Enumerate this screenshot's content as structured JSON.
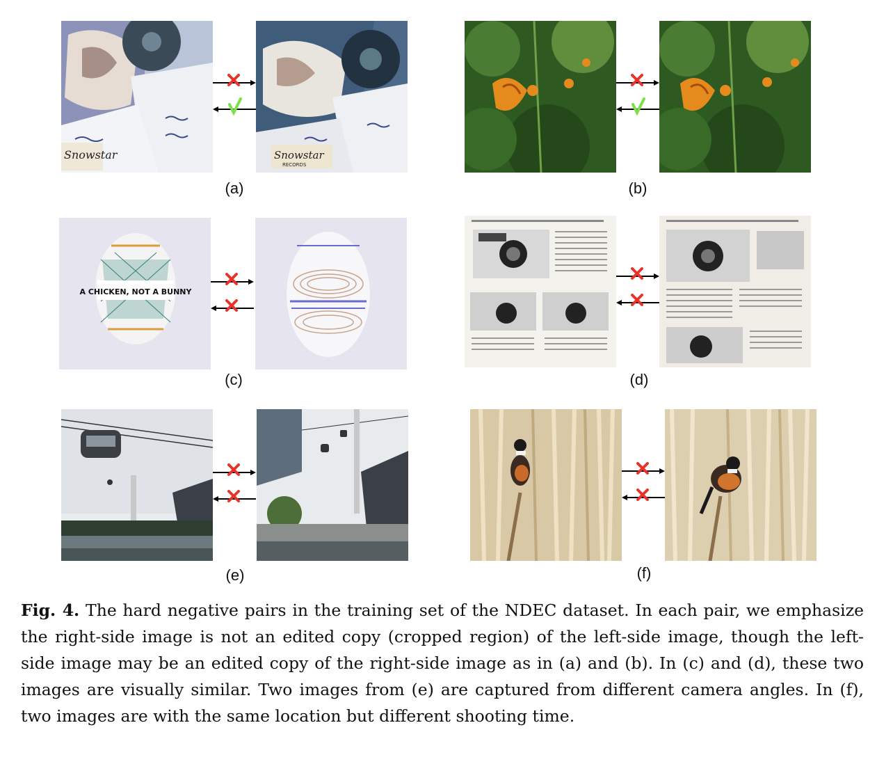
{
  "panels": [
    {
      "id": "a",
      "label": "(a)",
      "forward": "cross",
      "backward": "check"
    },
    {
      "id": "b",
      "label": "(b)",
      "forward": "cross",
      "backward": "check"
    },
    {
      "id": "c",
      "label": "(c)",
      "forward": "cross",
      "backward": "cross"
    },
    {
      "id": "d",
      "label": "(d)",
      "forward": "cross",
      "backward": "cross"
    },
    {
      "id": "e",
      "label": "(e)",
      "forward": "cross",
      "backward": "cross"
    },
    {
      "id": "f",
      "label": "(f)",
      "forward": "cross",
      "backward": "cross"
    }
  ],
  "image_text": {
    "a_logo": "Snowstar",
    "a_logo_sub": "RECORDS",
    "c_egg": "A CHICKEN, NOT A BUNNY"
  },
  "colors": {
    "cross": "#e8332a",
    "check": "#7be04a",
    "arrow": "#000000"
  },
  "caption": {
    "fig_label": "Fig. 4.",
    "text": " The hard negative pairs in the training set of the NDEC dataset. In each pair, we emphasize the right-side image is not an edited copy (cropped region) of the left-side image, though the left-side image may be an edited copy of the right-side image as in (a) and (b). In (c) and (d), these two images are visually similar. Two images from (e) are captured from different camera angles. In (f), two images are with the same location but different shooting time."
  }
}
